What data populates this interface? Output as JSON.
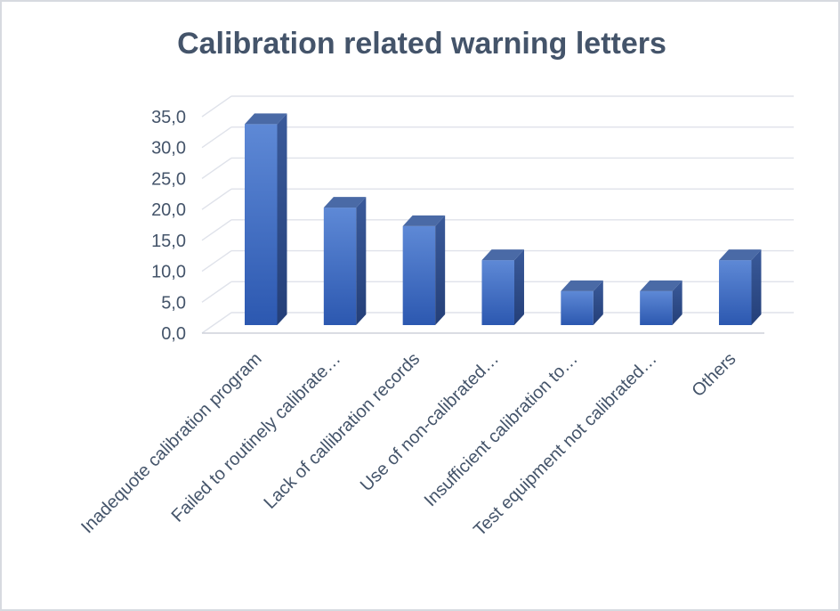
{
  "chart_data": {
    "type": "bar",
    "style": "3d-column",
    "title": "Calibration related warning letters",
    "categories": [
      "Inadequote calibration program",
      "Failed to routinely calibrate…",
      "Lack of callibration records",
      "Use of non-calibrated…",
      "Insufficient calibration to…",
      "Test equipment not calibrated…",
      "Others"
    ],
    "values": [
      32.5,
      19.0,
      16.0,
      10.5,
      5.5,
      5.5,
      10.5
    ],
    "xlabel": "",
    "ylabel": "",
    "ylim": [
      0,
      35
    ],
    "y_ticks": [
      0,
      5,
      10,
      15,
      20,
      25,
      30,
      35
    ],
    "y_tick_labels": [
      "0,0",
      "5,0",
      "10,0",
      "15,0",
      "20,0",
      "25,0",
      "30,0",
      "35,0"
    ],
    "decimal_separator": ",",
    "grid": true,
    "legend": "none",
    "category_label_rotation_deg": 45,
    "colors": {
      "title_text": "#44546A",
      "axis_text": "#44546A",
      "gridline": "#dfe2ea",
      "floor_line": "#cdd1da",
      "bar_front_top": "#5e89d6",
      "bar_front_bottom": "#2c58b0",
      "bar_side_top": "#3a5a9a",
      "bar_side_bottom": "#243f78",
      "bar_top_face": "#4a6aa6",
      "frame_border": "#d7dae0",
      "background": "#ffffff"
    }
  }
}
